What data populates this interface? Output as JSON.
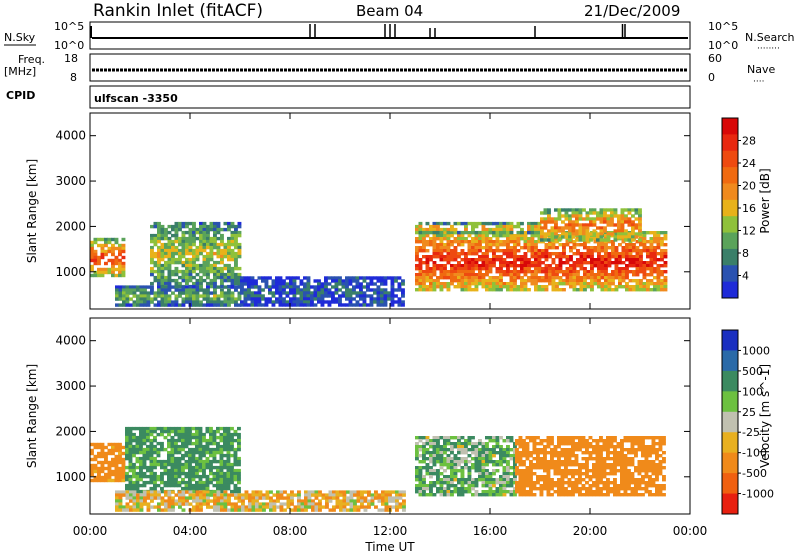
{
  "header": {
    "title": "Rankin Inlet (fitACF)",
    "beam": "Beam 04",
    "date": "21/Dec/2009"
  },
  "noise_panel": {
    "left_label": "N.Sky",
    "right_label": "N.Search",
    "right_dots": "········",
    "left_ticks": [
      "10^5",
      "10^0"
    ],
    "right_ticks": [
      "10^5",
      "10^0"
    ]
  },
  "freq_panel": {
    "left_label_line1": "Freq.",
    "left_label_line2": "[MHz]",
    "right_label": "Nave",
    "right_dots": "····",
    "left_ticks": [
      "18",
      "8"
    ],
    "right_ticks": [
      "60",
      "0"
    ]
  },
  "cpid": {
    "label": "CPID",
    "program": "ulfscan -3350"
  },
  "time_axis": {
    "label": "Time UT",
    "ticks": [
      "00:00",
      "04:00",
      "08:00",
      "12:00",
      "16:00",
      "20:00",
      "00:00"
    ]
  },
  "chart_data": [
    {
      "type": "heatmap",
      "name": "power",
      "ylabel": "Slant Range [km]",
      "yticks": [
        1000,
        2000,
        3000,
        4000
      ],
      "ylim": [
        180,
        4500
      ],
      "xlim_hours": [
        0,
        24
      ],
      "colorbar": {
        "label": "Power [dB]",
        "ticks": [
          "4",
          "8",
          "12",
          "16",
          "20",
          "24",
          "28"
        ],
        "colors": [
          "#1f2bd8",
          "#2a52b0",
          "#3a7f69",
          "#5aa35a",
          "#8fc13a",
          "#e8b21a",
          "#f08a1e",
          "#f06a10",
          "#ee4a10",
          "#e82810",
          "#d80808"
        ]
      },
      "regions": [
        {
          "t": [
            0.0,
            1.4
          ],
          "r": [
            900,
            1750
          ],
          "level": 0.8
        },
        {
          "t": [
            2.4,
            6.0
          ],
          "r": [
            700,
            2100
          ],
          "level": 0.45
        },
        {
          "t": [
            1.0,
            6.0
          ],
          "r": [
            300,
            700
          ],
          "level": 0.35
        },
        {
          "t": [
            6.0,
            12.5
          ],
          "r": [
            250,
            900
          ],
          "level": 0.15
        },
        {
          "t": [
            13.0,
            23.0
          ],
          "r": [
            600,
            1900
          ],
          "level": 0.9
        },
        {
          "t": [
            13.0,
            18.0
          ],
          "r": [
            1900,
            2100
          ],
          "level": 0.6
        },
        {
          "t": [
            18.0,
            22.0
          ],
          "r": [
            1700,
            2400
          ],
          "level": 0.7
        }
      ]
    },
    {
      "type": "heatmap",
      "name": "velocity",
      "ylabel": "Slant Range [km]",
      "yticks": [
        1000,
        2000,
        3000,
        4000
      ],
      "ylim": [
        180,
        4500
      ],
      "xlim_hours": [
        0,
        24
      ],
      "colorbar": {
        "label": "Velocity [m s^-1]",
        "ticks": [
          "1000",
          "500",
          "100",
          "25",
          "-25",
          "-100",
          "-500",
          "-1000"
        ],
        "colors": [
          "#1a2fc0",
          "#2a6aa8",
          "#3b8a60",
          "#6cc040",
          "#c0c0b0",
          "#e8b020",
          "#f08a1a",
          "#f06010",
          "#e82010"
        ]
      },
      "regions": [
        {
          "t": [
            0.0,
            1.4
          ],
          "r": [
            900,
            1750
          ],
          "vel": -200
        },
        {
          "t": [
            1.4,
            6.0
          ],
          "r": [
            700,
            2100
          ],
          "vel": 150
        },
        {
          "t": [
            1.0,
            12.5
          ],
          "r": [
            250,
            700
          ],
          "vel": -60
        },
        {
          "t": [
            13.0,
            17.0
          ],
          "r": [
            600,
            1900
          ],
          "vel": 80
        },
        {
          "t": [
            17.0,
            23.0
          ],
          "r": [
            600,
            1900
          ],
          "vel": -250
        }
      ]
    }
  ]
}
